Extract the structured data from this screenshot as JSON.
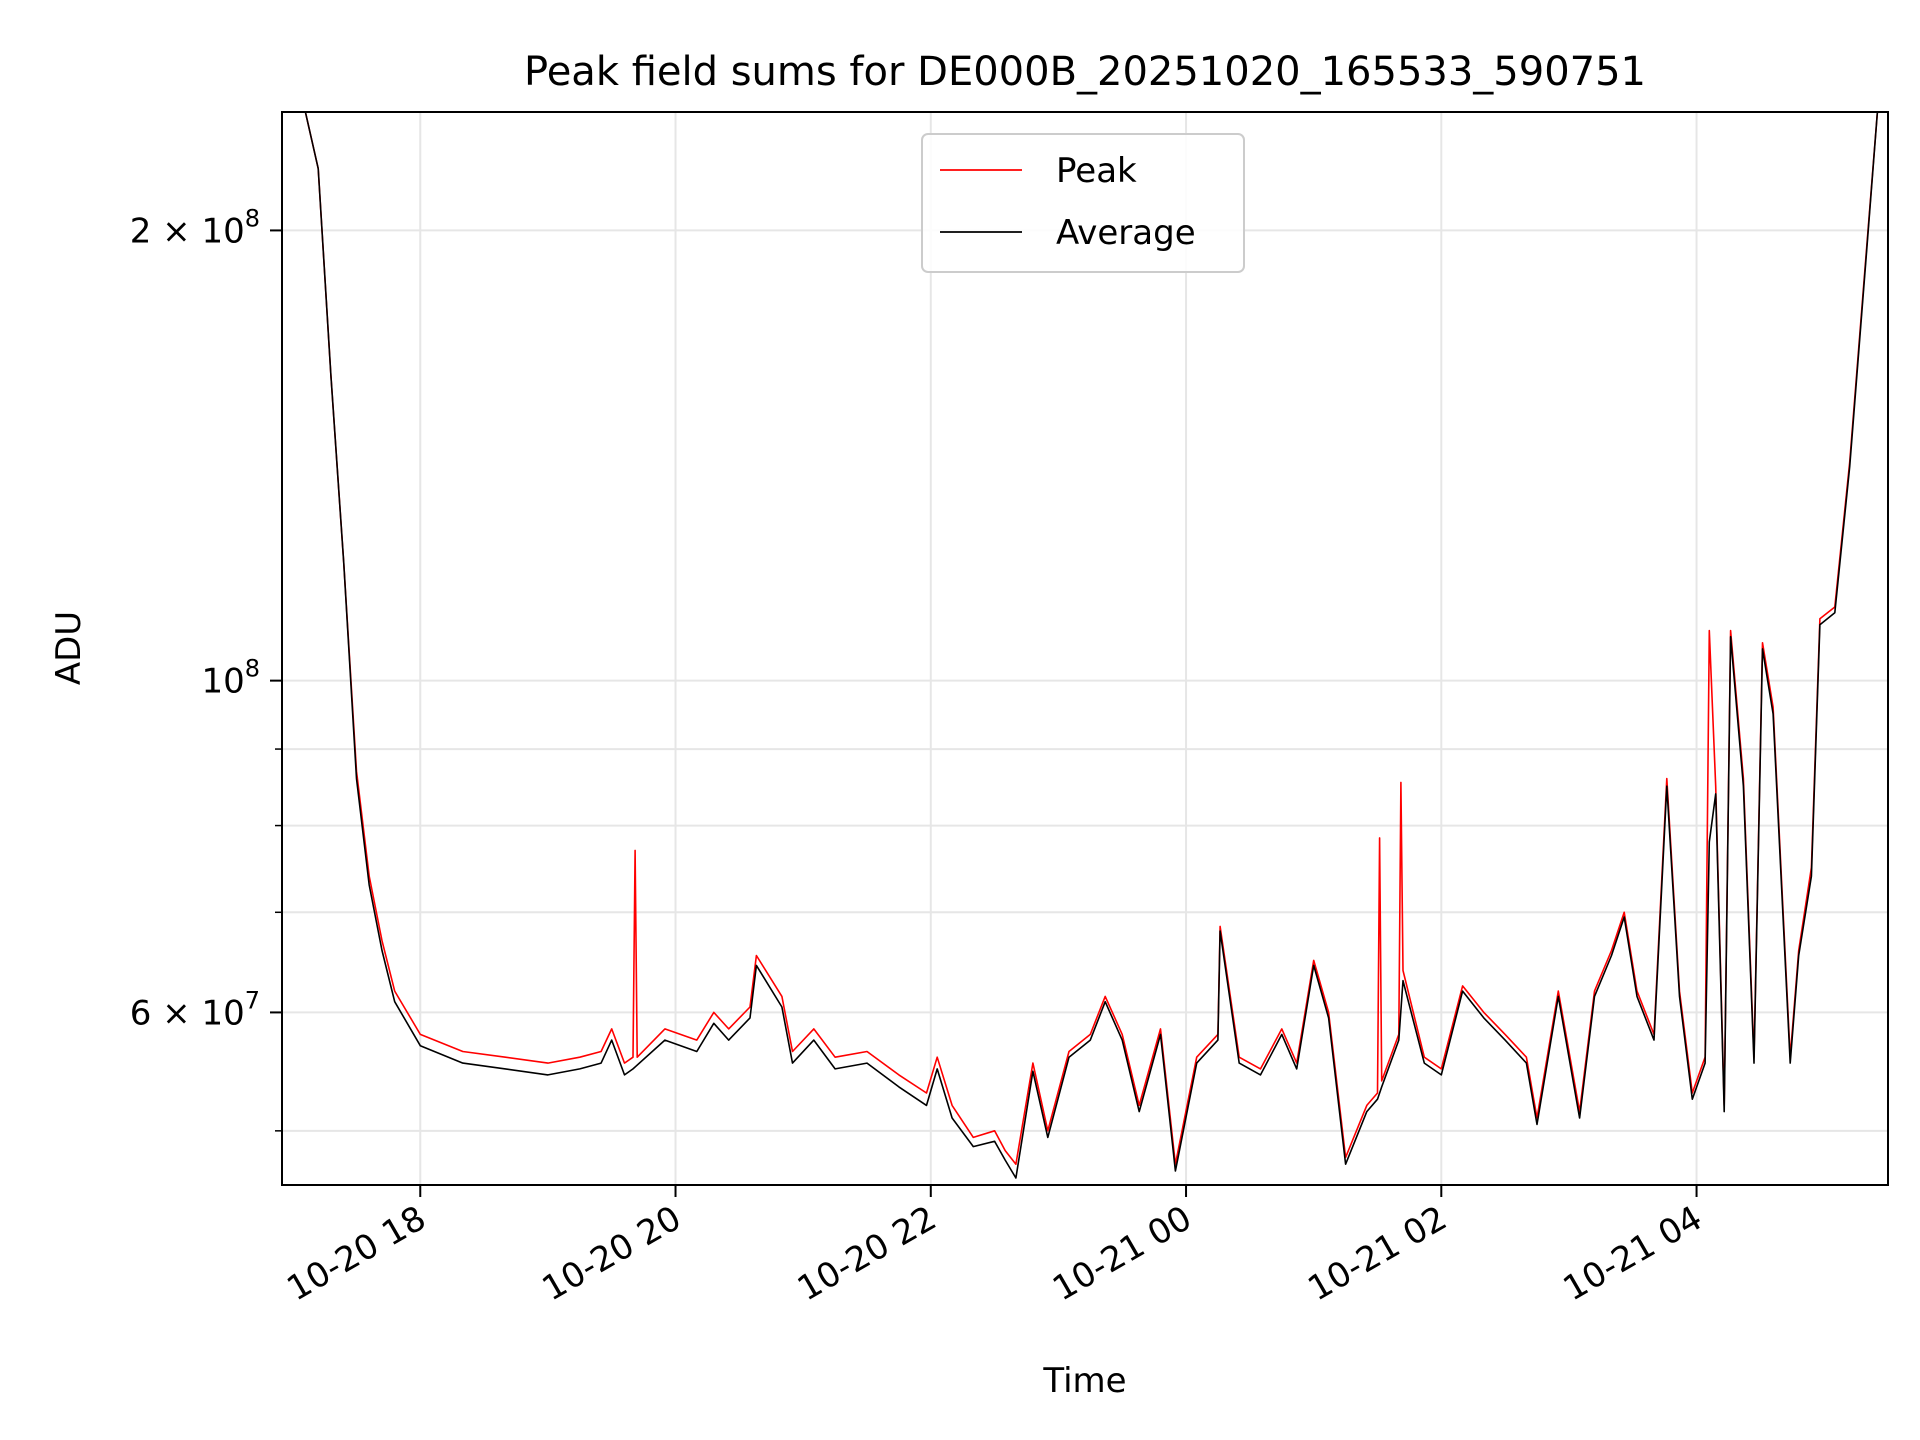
{
  "chart_data": {
    "type": "line",
    "title": "Peak field sums for DE000B_20251020_165533_590751",
    "xlabel": "Time",
    "ylabel": "ADU",
    "y_scale": "log",
    "ylim": [
      46000000,
      240000000
    ],
    "xlim": [
      "2025-10-20 16:55",
      "2025-10-21 05:30"
    ],
    "grid": true,
    "legend_position": "upper center",
    "x_ticks": [
      {
        "value": "2025-10-20 18:00",
        "label": "10-20 18"
      },
      {
        "value": "2025-10-20 20:00",
        "label": "10-20 20"
      },
      {
        "value": "2025-10-20 22:00",
        "label": "10-20 22"
      },
      {
        "value": "2025-10-21 00:00",
        "label": "10-21 00"
      },
      {
        "value": "2025-10-21 02:00",
        "label": "10-21 02"
      },
      {
        "value": "2025-10-21 04:00",
        "label": "10-21 04"
      }
    ],
    "y_major_ticks": [
      {
        "value": 60000000,
        "label_mantissa": "6 × 10",
        "label_exp": "7"
      },
      {
        "value": 100000000,
        "label_mantissa": "10",
        "label_exp": "8"
      },
      {
        "value": 200000000,
        "label_mantissa": "2 × 10",
        "label_exp": "8"
      }
    ],
    "y_minor_gridlines": [
      50000000,
      70000000,
      80000000,
      90000000
    ],
    "series": [
      {
        "name": "Peak",
        "color": "#ff0000",
        "points": [
          [
            "2025-10-20 16:55",
            240000000
          ],
          [
            "2025-10-20 17:06",
            240000000
          ],
          [
            "2025-10-20 17:12",
            220000000
          ],
          [
            "2025-10-20 17:18",
            160000000
          ],
          [
            "2025-10-20 17:24",
            120000000
          ],
          [
            "2025-10-20 17:30",
            87000000
          ],
          [
            "2025-10-20 17:36",
            74000000
          ],
          [
            "2025-10-20 17:42",
            67000000
          ],
          [
            "2025-10-20 17:48",
            62000000
          ],
          [
            "2025-10-20 18:00",
            58000000
          ],
          [
            "2025-10-20 18:20",
            56500000
          ],
          [
            "2025-10-20 18:40",
            56000000
          ],
          [
            "2025-10-20 19:00",
            55500000
          ],
          [
            "2025-10-20 19:15",
            56000000
          ],
          [
            "2025-10-20 19:25",
            56500000
          ],
          [
            "2025-10-20 19:30",
            58500000
          ],
          [
            "2025-10-20 19:36",
            55500000
          ],
          [
            "2025-10-20 19:40",
            56000000
          ],
          [
            "2025-10-20 19:41",
            77000000
          ],
          [
            "2025-10-20 19:42",
            56000000
          ],
          [
            "2025-10-20 19:55",
            58500000
          ],
          [
            "2025-10-20 20:10",
            57500000
          ],
          [
            "2025-10-20 20:18",
            60000000
          ],
          [
            "2025-10-20 20:25",
            58500000
          ],
          [
            "2025-10-20 20:35",
            60500000
          ],
          [
            "2025-10-20 20:38",
            65500000
          ],
          [
            "2025-10-20 20:50",
            61500000
          ],
          [
            "2025-10-20 20:55",
            56500000
          ],
          [
            "2025-10-20 21:05",
            58500000
          ],
          [
            "2025-10-20 21:15",
            56000000
          ],
          [
            "2025-10-20 21:30",
            56500000
          ],
          [
            "2025-10-20 21:45",
            54500000
          ],
          [
            "2025-10-20 21:58",
            53000000
          ],
          [
            "2025-10-20 22:03",
            56000000
          ],
          [
            "2025-10-20 22:10",
            52000000
          ],
          [
            "2025-10-20 22:20",
            49500000
          ],
          [
            "2025-10-20 22:30",
            50000000
          ],
          [
            "2025-10-20 22:35",
            48500000
          ],
          [
            "2025-10-20 22:40",
            47500000
          ],
          [
            "2025-10-20 22:48",
            55500000
          ],
          [
            "2025-10-20 22:55",
            50000000
          ],
          [
            "2025-10-20 23:05",
            56500000
          ],
          [
            "2025-10-20 23:15",
            58000000
          ],
          [
            "2025-10-20 23:22",
            61500000
          ],
          [
            "2025-10-20 23:30",
            58000000
          ],
          [
            "2025-10-20 23:38",
            52000000
          ],
          [
            "2025-10-20 23:48",
            58500000
          ],
          [
            "2025-10-20 23:55",
            47500000
          ],
          [
            "2025-10-21 00:05",
            56000000
          ],
          [
            "2025-10-21 00:15",
            58000000
          ],
          [
            "2025-10-21 00:16",
            68500000
          ],
          [
            "2025-10-21 00:25",
            56000000
          ],
          [
            "2025-10-21 00:35",
            55000000
          ],
          [
            "2025-10-21 00:45",
            58500000
          ],
          [
            "2025-10-21 00:52",
            55500000
          ],
          [
            "2025-10-21 01:00",
            65000000
          ],
          [
            "2025-10-21 01:07",
            60000000
          ],
          [
            "2025-10-21 01:15",
            48000000
          ],
          [
            "2025-10-21 01:25",
            52000000
          ],
          [
            "2025-10-21 01:30",
            53000000
          ],
          [
            "2025-10-21 01:31",
            78500000
          ],
          [
            "2025-10-21 01:32",
            54000000
          ],
          [
            "2025-10-21 01:40",
            58000000
          ],
          [
            "2025-10-21 01:41",
            85500000
          ],
          [
            "2025-10-21 01:42",
            64000000
          ],
          [
            "2025-10-21 01:52",
            56000000
          ],
          [
            "2025-10-21 02:00",
            55000000
          ],
          [
            "2025-10-21 02:10",
            62500000
          ],
          [
            "2025-10-21 02:20",
            60000000
          ],
          [
            "2025-10-21 02:30",
            58000000
          ],
          [
            "2025-10-21 02:40",
            56000000
          ],
          [
            "2025-10-21 02:45",
            51000000
          ],
          [
            "2025-10-21 02:55",
            62000000
          ],
          [
            "2025-10-21 03:05",
            51500000
          ],
          [
            "2025-10-21 03:12",
            62000000
          ],
          [
            "2025-10-21 03:20",
            66000000
          ],
          [
            "2025-10-21 03:26",
            70000000
          ],
          [
            "2025-10-21 03:32",
            62000000
          ],
          [
            "2025-10-21 03:40",
            58000000
          ],
          [
            "2025-10-21 03:46",
            86000000
          ],
          [
            "2025-10-21 03:52",
            62000000
          ],
          [
            "2025-10-21 03:58",
            53000000
          ],
          [
            "2025-10-21 04:04",
            56000000
          ],
          [
            "2025-10-21 04:06",
            108000000
          ],
          [
            "2025-10-21 04:09",
            85000000
          ],
          [
            "2025-10-21 04:13",
            52000000
          ],
          [
            "2025-10-21 04:16",
            108000000
          ],
          [
            "2025-10-21 04:22",
            86000000
          ],
          [
            "2025-10-21 04:27",
            56000000
          ],
          [
            "2025-10-21 04:31",
            106000000
          ],
          [
            "2025-10-21 04:36",
            96000000
          ],
          [
            "2025-10-21 04:44",
            56000000
          ],
          [
            "2025-10-21 04:48",
            66000000
          ],
          [
            "2025-10-21 04:54",
            75000000
          ],
          [
            "2025-10-21 04:58",
            110000000
          ],
          [
            "2025-10-21 05:05",
            112000000
          ],
          [
            "2025-10-21 05:12",
            140000000
          ],
          [
            "2025-10-21 05:20",
            195000000
          ],
          [
            "2025-10-21 05:25",
            240000000
          ],
          [
            "2025-10-21 05:30",
            240000000
          ]
        ]
      },
      {
        "name": "Average",
        "color": "#000000",
        "points": [
          [
            "2025-10-20 16:55",
            240000000
          ],
          [
            "2025-10-20 17:06",
            240000000
          ],
          [
            "2025-10-20 17:12",
            220000000
          ],
          [
            "2025-10-20 17:18",
            160000000
          ],
          [
            "2025-10-20 17:24",
            120000000
          ],
          [
            "2025-10-20 17:30",
            86000000
          ],
          [
            "2025-10-20 17:36",
            73000000
          ],
          [
            "2025-10-20 17:42",
            66000000
          ],
          [
            "2025-10-20 17:48",
            61000000
          ],
          [
            "2025-10-20 18:00",
            57000000
          ],
          [
            "2025-10-20 18:20",
            55500000
          ],
          [
            "2025-10-20 18:40",
            55000000
          ],
          [
            "2025-10-20 19:00",
            54500000
          ],
          [
            "2025-10-20 19:15",
            55000000
          ],
          [
            "2025-10-20 19:25",
            55500000
          ],
          [
            "2025-10-20 19:30",
            57500000
          ],
          [
            "2025-10-20 19:36",
            54500000
          ],
          [
            "2025-10-20 19:40",
            55000000
          ],
          [
            "2025-10-20 19:55",
            57500000
          ],
          [
            "2025-10-20 20:10",
            56500000
          ],
          [
            "2025-10-20 20:18",
            59000000
          ],
          [
            "2025-10-20 20:25",
            57500000
          ],
          [
            "2025-10-20 20:35",
            59500000
          ],
          [
            "2025-10-20 20:38",
            64500000
          ],
          [
            "2025-10-20 20:50",
            60500000
          ],
          [
            "2025-10-20 20:55",
            55500000
          ],
          [
            "2025-10-20 21:05",
            57500000
          ],
          [
            "2025-10-20 21:15",
            55000000
          ],
          [
            "2025-10-20 21:30",
            55500000
          ],
          [
            "2025-10-20 21:45",
            53500000
          ],
          [
            "2025-10-20 21:58",
            52000000
          ],
          [
            "2025-10-20 22:03",
            55000000
          ],
          [
            "2025-10-20 22:10",
            51000000
          ],
          [
            "2025-10-20 22:20",
            48800000
          ],
          [
            "2025-10-20 22:30",
            49200000
          ],
          [
            "2025-10-20 22:35",
            47800000
          ],
          [
            "2025-10-20 22:40",
            46500000
          ],
          [
            "2025-10-20 22:48",
            54800000
          ],
          [
            "2025-10-20 22:55",
            49500000
          ],
          [
            "2025-10-20 23:05",
            56000000
          ],
          [
            "2025-10-20 23:15",
            57500000
          ],
          [
            "2025-10-20 23:22",
            61000000
          ],
          [
            "2025-10-20 23:30",
            57500000
          ],
          [
            "2025-10-20 23:38",
            51500000
          ],
          [
            "2025-10-20 23:48",
            58000000
          ],
          [
            "2025-10-20 23:55",
            47000000
          ],
          [
            "2025-10-21 00:05",
            55500000
          ],
          [
            "2025-10-21 00:15",
            57500000
          ],
          [
            "2025-10-21 00:16",
            68000000
          ],
          [
            "2025-10-21 00:25",
            55500000
          ],
          [
            "2025-10-21 00:35",
            54500000
          ],
          [
            "2025-10-21 00:45",
            58000000
          ],
          [
            "2025-10-21 00:52",
            55000000
          ],
          [
            "2025-10-21 01:00",
            64500000
          ],
          [
            "2025-10-21 01:07",
            59500000
          ],
          [
            "2025-10-21 01:15",
            47500000
          ],
          [
            "2025-10-21 01:25",
            51500000
          ],
          [
            "2025-10-21 01:30",
            52500000
          ],
          [
            "2025-10-21 01:32",
            53500000
          ],
          [
            "2025-10-21 01:40",
            57500000
          ],
          [
            "2025-10-21 01:42",
            63000000
          ],
          [
            "2025-10-21 01:52",
            55500000
          ],
          [
            "2025-10-21 02:00",
            54500000
          ],
          [
            "2025-10-21 02:10",
            62000000
          ],
          [
            "2025-10-21 02:20",
            59500000
          ],
          [
            "2025-10-21 02:30",
            57500000
          ],
          [
            "2025-10-21 02:40",
            55500000
          ],
          [
            "2025-10-21 02:45",
            50500000
          ],
          [
            "2025-10-21 02:55",
            61500000
          ],
          [
            "2025-10-21 03:05",
            51000000
          ],
          [
            "2025-10-21 03:12",
            61500000
          ],
          [
            "2025-10-21 03:20",
            65500000
          ],
          [
            "2025-10-21 03:26",
            69500000
          ],
          [
            "2025-10-21 03:32",
            61500000
          ],
          [
            "2025-10-21 03:40",
            57500000
          ],
          [
            "2025-10-21 03:46",
            85000000
          ],
          [
            "2025-10-21 03:52",
            61500000
          ],
          [
            "2025-10-21 03:58",
            52500000
          ],
          [
            "2025-10-21 04:04",
            55500000
          ],
          [
            "2025-10-21 04:06",
            78000000
          ],
          [
            "2025-10-21 04:09",
            84000000
          ],
          [
            "2025-10-21 04:13",
            51500000
          ],
          [
            "2025-10-21 04:16",
            107000000
          ],
          [
            "2025-10-21 04:22",
            85000000
          ],
          [
            "2025-10-21 04:27",
            55500000
          ],
          [
            "2025-10-21 04:31",
            105000000
          ],
          [
            "2025-10-21 04:36",
            95000000
          ],
          [
            "2025-10-21 04:44",
            55500000
          ],
          [
            "2025-10-21 04:48",
            65500000
          ],
          [
            "2025-10-21 04:54",
            74000000
          ],
          [
            "2025-10-21 04:58",
            109000000
          ],
          [
            "2025-10-21 05:05",
            111000000
          ],
          [
            "2025-10-21 05:12",
            139000000
          ],
          [
            "2025-10-21 05:20",
            194000000
          ],
          [
            "2025-10-21 05:25",
            240000000
          ],
          [
            "2025-10-21 05:30",
            240000000
          ]
        ]
      }
    ]
  }
}
